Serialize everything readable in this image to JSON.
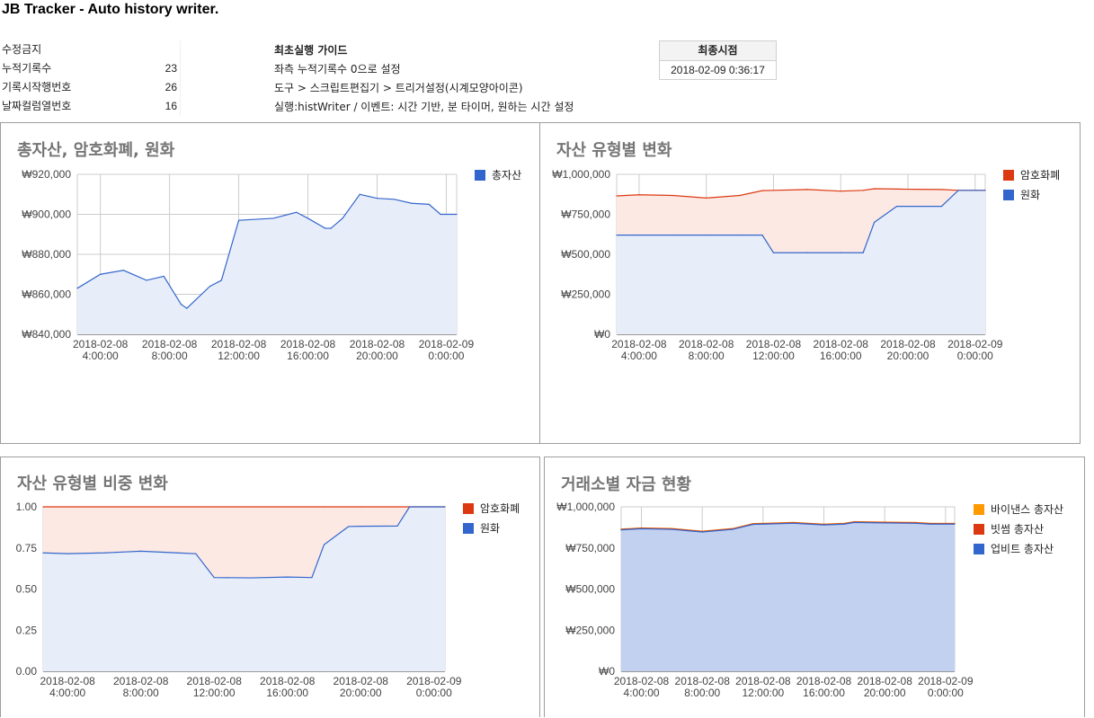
{
  "page_title": "JB Tracker - Auto history writer.",
  "info_rows": [
    {
      "label": "수정금지",
      "value": ""
    },
    {
      "label": "누적기록수",
      "value": "23"
    },
    {
      "label": "기록시작행번호",
      "value": "26"
    },
    {
      "label": "날짜컬럼열번호",
      "value": "16"
    }
  ],
  "guide": {
    "title": "최초실행 가이드",
    "lines": [
      "좌측 누적기록수 0으로 설정",
      "도구 > 스크립트편집기 > 트리거설정(시계모양아이콘)",
      "실행:histWriter / 이벤트: 시간 기반, 분 타이머, 원하는 시간 설정"
    ]
  },
  "last_time": {
    "header": "최종시점",
    "value": "2018-02-09 0:36:17"
  },
  "colors": {
    "blue": "#3366cc",
    "red": "#dc3912",
    "orange": "#ff9900",
    "fill_blue": "#e8eef9",
    "fill_red": "#fce9e4",
    "fill_upbit": "#c2d1ef",
    "grid": "#cccccc"
  },
  "chart_data": [
    {
      "type": "area",
      "title": "총자산, 암호화폐, 원화",
      "x": [
        "2018-02-08 2:40",
        "2018-02-08 4:00",
        "2018-02-08 5:20",
        "2018-02-08 6:40",
        "2018-02-08 7:40",
        "2018-02-08 8:40",
        "2018-02-08 9:00",
        "2018-02-08 10:20",
        "2018-02-08 11:00",
        "2018-02-08 12:00",
        "2018-02-08 14:00",
        "2018-02-08 15:20",
        "2018-02-08 16:00",
        "2018-02-08 17:00",
        "2018-02-08 17:20",
        "2018-02-08 18:00",
        "2018-02-08 19:00",
        "2018-02-08 20:00",
        "2018-02-08 21:00",
        "2018-02-08 22:00",
        "2018-02-08 23:00",
        "2018-02-08 23:40",
        "2018-02-09 0:36"
      ],
      "xticks": [
        [
          "2018-02-08",
          "4:00:00"
        ],
        [
          "2018-02-08",
          "8:00:00"
        ],
        [
          "2018-02-08",
          "12:00:00"
        ],
        [
          "2018-02-08",
          "16:00:00"
        ],
        [
          "2018-02-08",
          "20:00:00"
        ],
        [
          "2018-02-09",
          "0:00:00"
        ]
      ],
      "yticks": [
        "₩840,000",
        "₩860,000",
        "₩880,000",
        "₩900,000",
        "₩920,000"
      ],
      "ylim": [
        840000,
        920000
      ],
      "series": [
        {
          "name": "총자산",
          "color": "#3366cc",
          "values": [
            863000,
            870000,
            872000,
            867000,
            869000,
            855000,
            853000,
            864000,
            867000,
            897000,
            898000,
            901000,
            898000,
            893000,
            893000,
            898000,
            910000,
            908000,
            907500,
            905500,
            905000,
            900000,
            900000
          ]
        }
      ],
      "legend": "right"
    },
    {
      "type": "area",
      "title": "자산 유형별 변화",
      "x": [
        "2018-02-08 2:40",
        "2018-02-08 4:00",
        "2018-02-08 6:00",
        "2018-02-08 8:00",
        "2018-02-08 10:00",
        "2018-02-08 11:20",
        "2018-02-08 12:00",
        "2018-02-08 14:00",
        "2018-02-08 16:00",
        "2018-02-08 17:20",
        "2018-02-08 18:00",
        "2018-02-08 19:20",
        "2018-02-08 20:00",
        "2018-02-08 22:00",
        "2018-02-08 23:00",
        "2018-02-09 0:36"
      ],
      "xticks": [
        [
          "2018-02-08",
          "4:00:00"
        ],
        [
          "2018-02-08",
          "8:00:00"
        ],
        [
          "2018-02-08",
          "12:00:00"
        ],
        [
          "2018-02-08",
          "16:00:00"
        ],
        [
          "2018-02-08",
          "20:00:00"
        ],
        [
          "2018-02-09",
          "0:00:00"
        ]
      ],
      "yticks": [
        "₩0",
        "₩250,000",
        "₩500,000",
        "₩750,000",
        "₩1,000,000"
      ],
      "ylim": [
        0,
        1000000
      ],
      "series": [
        {
          "name": "암호화폐",
          "color": "#dc3912",
          "values": [
            865000,
            872000,
            868000,
            852000,
            868000,
            898000,
            900000,
            905000,
            895000,
            900000,
            910000,
            908000,
            907000,
            905000,
            900000,
            900000
          ]
        },
        {
          "name": "원화",
          "color": "#3366cc",
          "values": [
            620000,
            620000,
            620000,
            620000,
            620000,
            620000,
            510000,
            510000,
            510000,
            510000,
            700000,
            800000,
            800000,
            800000,
            900000,
            900000
          ]
        }
      ],
      "legend": "right"
    },
    {
      "type": "area",
      "title": "자산 유형별 비중 변화",
      "x": [
        "2018-02-08 2:40",
        "2018-02-08 4:00",
        "2018-02-08 6:00",
        "2018-02-08 7:00",
        "2018-02-08 8:00",
        "2018-02-08 10:00",
        "2018-02-08 11:00",
        "2018-02-08 12:00",
        "2018-02-08 14:00",
        "2018-02-08 16:00",
        "2018-02-08 17:20",
        "2018-02-08 18:00",
        "2018-02-08 19:20",
        "2018-02-08 20:00",
        "2018-02-08 22:00",
        "2018-02-08 22:40",
        "2018-02-09 0:36"
      ],
      "xticks": [
        [
          "2018-02-08",
          "4:00:00"
        ],
        [
          "2018-02-08",
          "8:00:00"
        ],
        [
          "2018-02-08",
          "12:00:00"
        ],
        [
          "2018-02-08",
          "16:00:00"
        ],
        [
          "2018-02-08",
          "20:00:00"
        ],
        [
          "2018-02-09",
          "0:00:00"
        ]
      ],
      "yticks": [
        "0.00",
        "0.25",
        "0.50",
        "0.75",
        "1.00"
      ],
      "ylim": [
        0,
        1
      ],
      "series": [
        {
          "name": "암호화폐",
          "color": "#dc3912",
          "values": [
            1.0,
            1.0,
            1.0,
            1.0,
            1.0,
            1.0,
            1.0,
            1.0,
            1.0,
            1.0,
            1.0,
            1.0,
            1.0,
            1.0,
            1.0,
            1.0,
            1.0
          ]
        },
        {
          "name": "원화",
          "color": "#3366cc",
          "values": [
            0.72,
            0.715,
            0.72,
            0.725,
            0.73,
            0.72,
            0.715,
            0.57,
            0.568,
            0.573,
            0.57,
            0.77,
            0.88,
            0.882,
            0.883,
            1.0,
            1.0
          ]
        }
      ],
      "legend": "right"
    },
    {
      "type": "area",
      "title": "거래소별 자금 현황",
      "x": [
        "2018-02-08 2:40",
        "2018-02-08 4:00",
        "2018-02-08 6:00",
        "2018-02-08 8:00",
        "2018-02-08 10:00",
        "2018-02-08 11:20",
        "2018-02-08 12:00",
        "2018-02-08 14:00",
        "2018-02-08 16:00",
        "2018-02-08 17:20",
        "2018-02-08 18:00",
        "2018-02-08 19:20",
        "2018-02-08 20:00",
        "2018-02-08 22:00",
        "2018-02-08 23:00",
        "2018-02-09 0:36"
      ],
      "xticks": [
        [
          "2018-02-08",
          "4:00:00"
        ],
        [
          "2018-02-08",
          "8:00:00"
        ],
        [
          "2018-02-08",
          "12:00:00"
        ],
        [
          "2018-02-08",
          "16:00:00"
        ],
        [
          "2018-02-08",
          "20:00:00"
        ],
        [
          "2018-02-09",
          "0:00:00"
        ]
      ],
      "yticks": [
        "₩0",
        "₩250,000",
        "₩500,000",
        "₩750,000",
        "₩1,000,000"
      ],
      "ylim": [
        0,
        1000000
      ],
      "series": [
        {
          "name": "바이낸스 총자산",
          "color": "#ff9900",
          "values": [
            865000,
            872000,
            868000,
            852000,
            868000,
            898000,
            900000,
            905000,
            895000,
            900000,
            910000,
            908000,
            907000,
            905000,
            900000,
            900000
          ]
        },
        {
          "name": "빗썸 총자산",
          "color": "#dc3912",
          "values": [
            863000,
            870000,
            866000,
            850000,
            866000,
            896000,
            898000,
            903000,
            893000,
            898000,
            908000,
            906000,
            905000,
            903000,
            898000,
            898000
          ]
        },
        {
          "name": "업비트 총자산",
          "color": "#3366cc",
          "values": [
            860000,
            867000,
            863000,
            847000,
            863000,
            893000,
            895000,
            900000,
            890000,
            895000,
            905000,
            903000,
            902000,
            900000,
            895000,
            895000
          ]
        }
      ],
      "legend": "right"
    }
  ]
}
